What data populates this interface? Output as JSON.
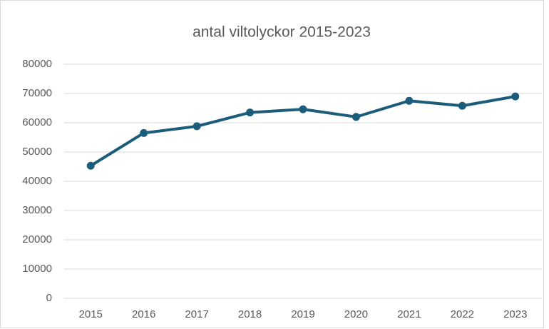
{
  "chart_data": {
    "type": "line",
    "title": "antal viltolyckor 2015-2023",
    "categories": [
      "2015",
      "2016",
      "2017",
      "2018",
      "2019",
      "2020",
      "2021",
      "2022",
      "2023"
    ],
    "series": [
      {
        "name": "antal viltolyckor",
        "color": "#1b5c7a",
        "values": [
          45300,
          56500,
          58800,
          63500,
          64600,
          62000,
          67500,
          65800,
          69000
        ]
      }
    ],
    "ylim": [
      0,
      80000
    ],
    "yticks": [
      0,
      10000,
      20000,
      30000,
      40000,
      50000,
      60000,
      70000,
      80000
    ],
    "grid": true
  }
}
